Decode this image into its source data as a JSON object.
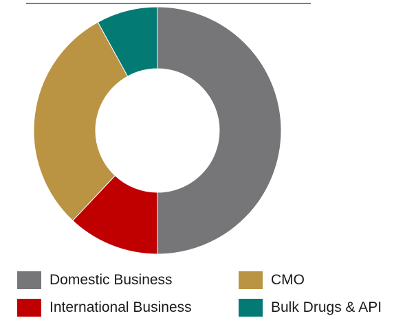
{
  "chart_data": {
    "type": "pie",
    "variant": "donut",
    "title": "",
    "categories": [
      "Domestic Business",
      "CMO",
      "International Business",
      "Bulk Drugs & API"
    ],
    "series": [
      {
        "values": [
          50,
          30,
          12,
          8
        ]
      }
    ],
    "colors": [
      "#767679",
      "#BA9442",
      "#C00000",
      "#047A75"
    ],
    "slice_order_clockwise_from_top": [
      "Domestic Business",
      "International Business",
      "CMO",
      "Bulk Drugs & API"
    ],
    "legend_placement": "bottom",
    "legend": [
      {
        "label": "Domestic Business",
        "color": "#767679"
      },
      {
        "label": "CMO",
        "color": "#BA9442"
      },
      {
        "label": "International Business",
        "color": "#C00000"
      },
      {
        "label": "Bulk Drugs & API",
        "color": "#047A75"
      }
    ]
  }
}
